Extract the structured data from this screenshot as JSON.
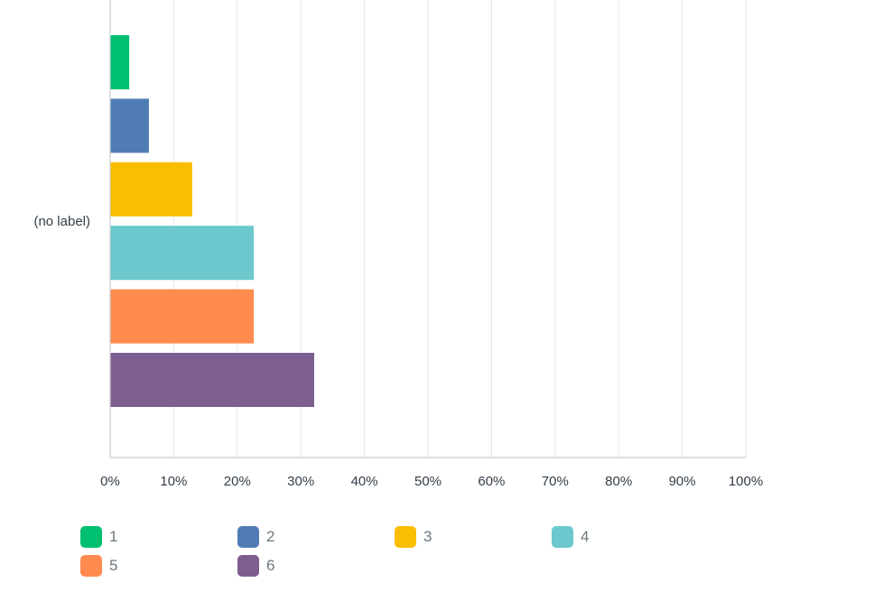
{
  "chart_data": {
    "type": "bar",
    "orientation": "horizontal",
    "categories": [
      "(no label)"
    ],
    "series": [
      {
        "name": "1",
        "values": [
          3.0
        ],
        "color": "#00bf6f"
      },
      {
        "name": "2",
        "values": [
          6.1
        ],
        "color": "#507cb6"
      },
      {
        "name": "3",
        "values": [
          12.9
        ],
        "color": "#f9be00"
      },
      {
        "name": "4",
        "values": [
          22.6
        ],
        "color": "#6bc8cd"
      },
      {
        "name": "5",
        "values": [
          22.6
        ],
        "color": "#ff8b4f"
      },
      {
        "name": "6",
        "values": [
          32.1
        ],
        "color": "#7d5e90"
      }
    ],
    "xlim": [
      0,
      100
    ],
    "xticks": [
      "0%",
      "10%",
      "20%",
      "30%",
      "40%",
      "50%",
      "60%",
      "70%",
      "80%",
      "90%",
      "100%"
    ],
    "grid": "vertical",
    "legend_position": "bottom"
  }
}
